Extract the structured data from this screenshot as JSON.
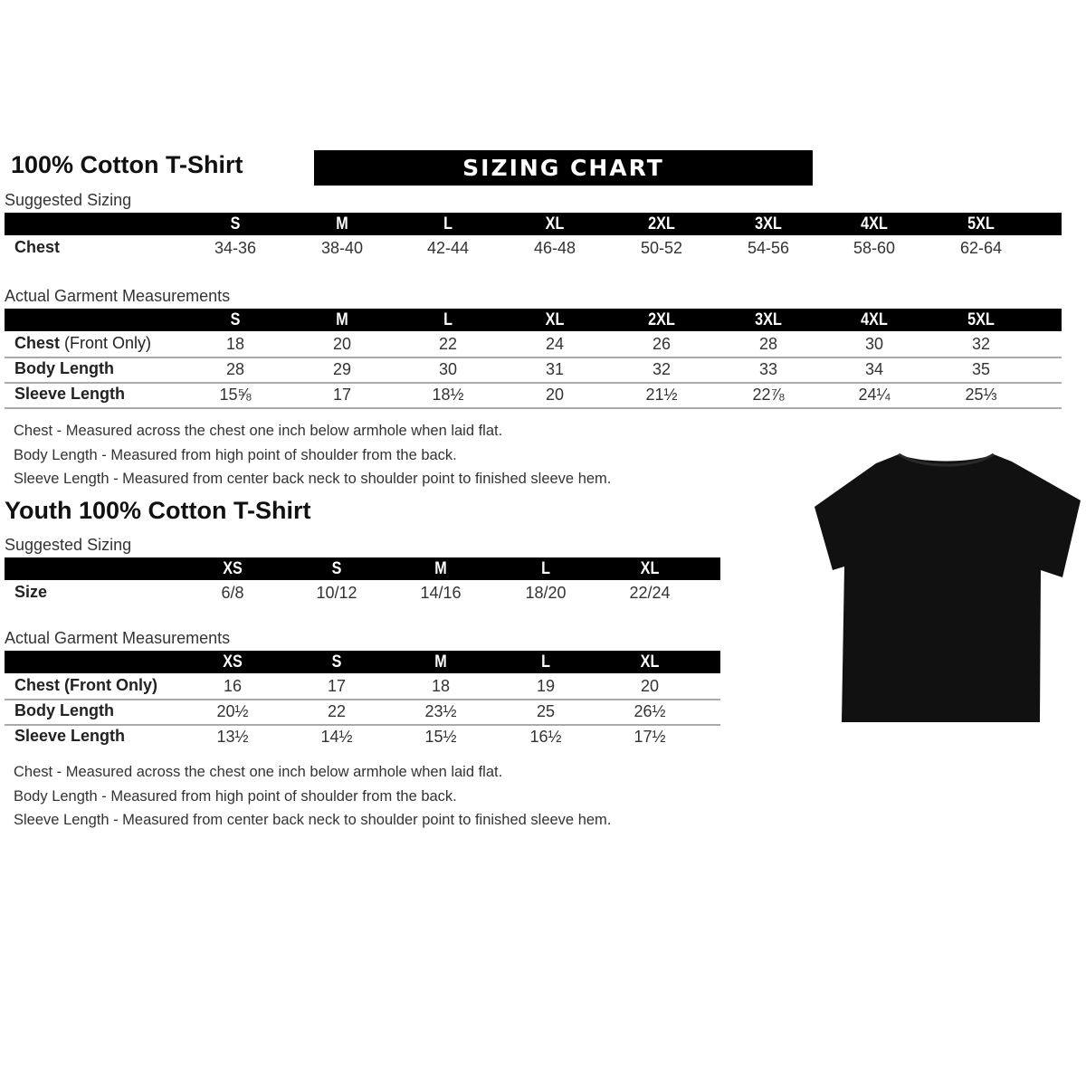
{
  "header": {
    "title": "100% Cotton T-Shirt",
    "banner": "SIZING CHART"
  },
  "adult": {
    "suggested": {
      "label": "Suggested Sizing",
      "sizes": [
        "S",
        "M",
        "L",
        "XL",
        "2XL",
        "3XL",
        "4XL",
        "5XL"
      ],
      "rows": [
        {
          "label": "Chest",
          "values": [
            "34-36",
            "38-40",
            "42-44",
            "46-48",
            "50-52",
            "54-56",
            "58-60",
            "62-64"
          ]
        }
      ]
    },
    "actual": {
      "label": "Actual Garment Measurements",
      "sizes": [
        "S",
        "M",
        "L",
        "XL",
        "2XL",
        "3XL",
        "4XL",
        "5XL"
      ],
      "rows": [
        {
          "label": "Chest",
          "sublabel": " (Front Only)",
          "values": [
            "18",
            "20",
            "22",
            "24",
            "26",
            "28",
            "30",
            "32"
          ]
        },
        {
          "label": "Body Length",
          "values": [
            "28",
            "29",
            "30",
            "31",
            "32",
            "33",
            "34",
            "35"
          ]
        },
        {
          "label": "Sleeve Length",
          "values": [
            "15⅝",
            "17",
            "18½",
            "20",
            "21½",
            "22⅞",
            "24¼",
            "25⅓"
          ]
        }
      ]
    },
    "notes": [
      "Chest - Measured across the chest one inch below armhole when laid flat.",
      "Body Length - Measured from high point of shoulder from the back.",
      "Sleeve Length - Measured from center back neck to shoulder point to finished sleeve hem."
    ]
  },
  "youth": {
    "title": "Youth 100% Cotton T-Shirt",
    "suggested": {
      "label": "Suggested Sizing",
      "sizes": [
        "XS",
        "S",
        "M",
        "L",
        "XL"
      ],
      "rows": [
        {
          "label": "Size",
          "values": [
            "6/8",
            "10/12",
            "14/16",
            "18/20",
            "22/24"
          ]
        }
      ]
    },
    "actual": {
      "label": "Actual Garment Measurements",
      "sizes": [
        "XS",
        "S",
        "M",
        "L",
        "XL"
      ],
      "rows": [
        {
          "label": "Chest (Front Only)",
          "values": [
            "16",
            "17",
            "18",
            "19",
            "20"
          ]
        },
        {
          "label": "Body Length",
          "values": [
            "20½",
            "22",
            "23½",
            "25",
            "26½"
          ]
        },
        {
          "label": "Sleeve Length",
          "values": [
            "13½",
            "14½",
            "15½",
            "16½",
            "17½"
          ]
        }
      ]
    },
    "notes": [
      "Chest - Measured across the chest one inch below armhole when laid flat.",
      "Body Length - Measured from high point of shoulder from the back.",
      "Sleeve Length - Measured from center back neck to shoulder point to finished sleeve hem."
    ]
  },
  "image": {
    "icon": "tshirt-icon",
    "color": "#111111"
  }
}
